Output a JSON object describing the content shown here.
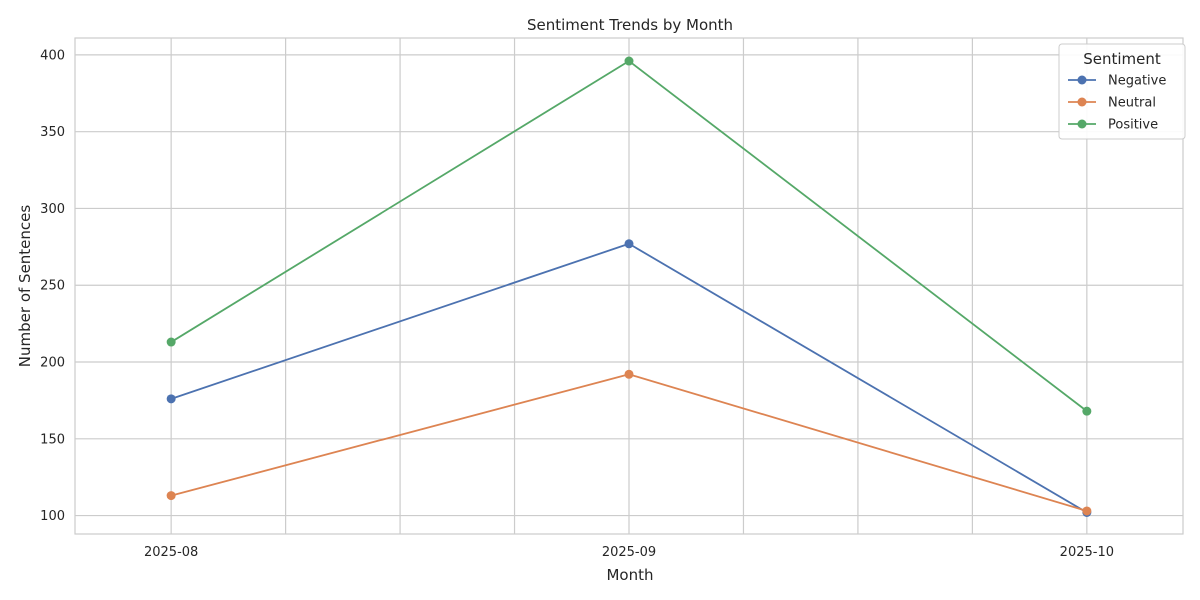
{
  "chart_data": {
    "type": "line",
    "title": "Sentiment Trends by Month",
    "xlabel": "Month",
    "ylabel": "Number of Sentences",
    "x": [
      "2025-08",
      "2025-09",
      "2025-10"
    ],
    "ylim": [
      88,
      411
    ],
    "yticks": [
      100,
      150,
      200,
      250,
      300,
      350,
      400
    ],
    "grid": true,
    "legend": {
      "title": "Sentiment",
      "placement": "top-right"
    },
    "series": [
      {
        "name": "Negative",
        "color": "#4c72b0",
        "values": [
          176,
          277,
          102
        ]
      },
      {
        "name": "Neutral",
        "color": "#dd8452",
        "values": [
          113,
          192,
          103
        ]
      },
      {
        "name": "Positive",
        "color": "#55a868",
        "values": [
          213,
          396,
          168
        ]
      }
    ]
  }
}
